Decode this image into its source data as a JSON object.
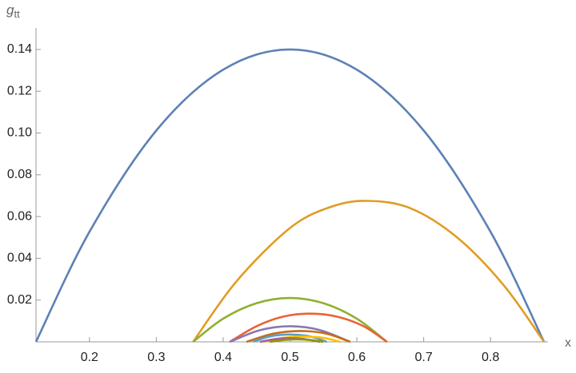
{
  "chart_data": {
    "type": "line",
    "x_label": "x",
    "y_label": "g",
    "y_label_sub": "tt",
    "xlim": [
      0.12,
      0.88
    ],
    "ylim": [
      0,
      0.148
    ],
    "xticks": [
      0.2,
      0.3,
      0.4,
      0.5,
      0.6,
      0.7,
      0.8
    ],
    "yticks": [
      0.02,
      0.04,
      0.06,
      0.08,
      {
        "value": 0.1,
        "label": "0.10"
      },
      0.12,
      0.14
    ],
    "series": [
      {
        "color": "#5E81B5",
        "x": [
          0.12,
          0.2,
          0.3,
          0.4,
          0.5,
          0.6,
          0.7,
          0.8,
          0.88
        ],
        "values": [
          0,
          0.0527,
          0.1012,
          0.1303,
          0.14,
          0.1303,
          0.1012,
          0.0527,
          0
        ]
      },
      {
        "color": "#E19C24",
        "x": [
          0.355,
          0.42,
          0.5,
          0.56,
          0.615,
          0.68,
          0.75,
          0.82,
          0.88
        ],
        "values": [
          0,
          0.029,
          0.0545,
          0.0645,
          0.0675,
          0.064,
          0.05,
          0.027,
          0
        ]
      },
      {
        "color": "#8FB032",
        "x": [
          0.355,
          0.4,
          0.45,
          0.5,
          0.55,
          0.6,
          0.645
        ],
        "values": [
          0,
          0.0111,
          0.0185,
          0.021,
          0.0185,
          0.0111,
          0
        ]
      },
      {
        "color": "#EB6235",
        "x": [
          0.41,
          0.45,
          0.49,
          0.53,
          0.57,
          0.61,
          0.645
        ],
        "values": [
          0,
          0.0075,
          0.0121,
          0.0135,
          0.0121,
          0.0075,
          0
        ]
      },
      {
        "color": "#8778B3",
        "x": [
          0.41,
          0.455,
          0.5,
          0.545,
          0.59
        ],
        "values": [
          0,
          0.0056,
          0.0075,
          0.0056,
          0
        ]
      },
      {
        "color": "#C56E1A",
        "x": [
          0.435,
          0.475,
          0.515,
          0.555,
          0.59
        ],
        "values": [
          0,
          0.0039,
          0.0052,
          0.0039,
          0
        ]
      },
      {
        "color": "#5D9EC7",
        "x": [
          0.445,
          0.47,
          0.5,
          0.53,
          0.555
        ],
        "values": [
          0,
          0.0026,
          0.0035,
          0.0026,
          0
        ]
      },
      {
        "color": "#FFBF00",
        "x": [
          0.46,
          0.49,
          0.52,
          0.55,
          0.575
        ],
        "values": [
          0,
          0.0019,
          0.0025,
          0.0019,
          0
        ]
      },
      {
        "color": "#A5609D",
        "x": [
          0.455,
          0.48,
          0.5,
          0.52,
          0.545
        ],
        "values": [
          0,
          0.0014,
          0.0018,
          0.0014,
          0
        ]
      },
      {
        "color": "#929600",
        "x": [
          0.47,
          0.49,
          0.51,
          0.53,
          0.55
        ],
        "values": [
          0,
          0.0009,
          0.0012,
          0.0009,
          0
        ]
      }
    ]
  }
}
